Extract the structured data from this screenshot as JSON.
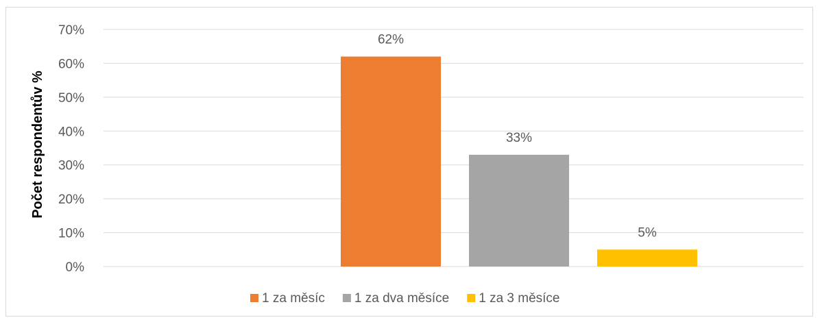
{
  "chart_data": {
    "type": "bar",
    "title": "",
    "xlabel": "",
    "ylabel": "Počet respondentův %",
    "ylim": [
      0,
      70
    ],
    "y_ticks": [
      "0%",
      "10%",
      "20%",
      "30%",
      "40%",
      "50%",
      "60%",
      "70%"
    ],
    "y_tick_values": [
      0,
      10,
      20,
      30,
      40,
      50,
      60,
      70
    ],
    "grid": true,
    "legend_position": "bottom",
    "series": [
      {
        "name": "1 za měsíc",
        "value": 62,
        "label": "62%",
        "color": "#ED7D31"
      },
      {
        "name": "1 za dva měsíce",
        "value": 33,
        "label": "33%",
        "color": "#A5A5A5"
      },
      {
        "name": "1 za 3 měsíce",
        "value": 5,
        "label": "5%",
        "color": "#FFC000"
      }
    ]
  }
}
